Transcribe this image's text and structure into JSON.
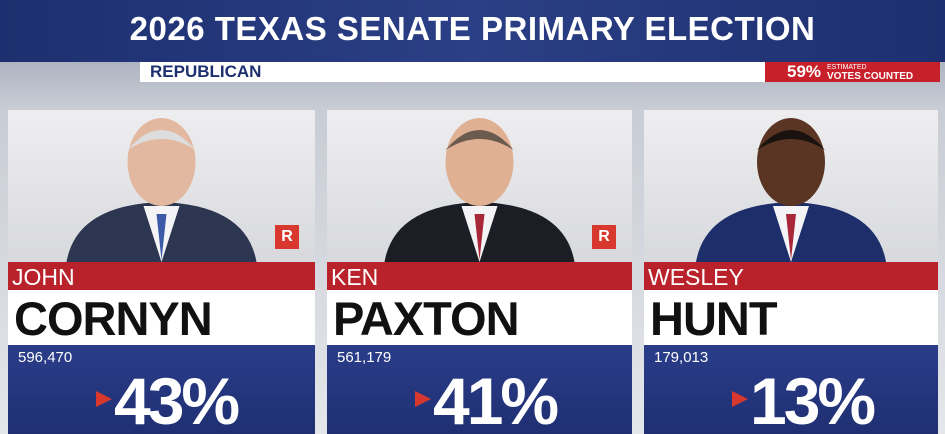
{
  "header": {
    "title": "2026 TEXAS SENATE PRIMARY ELECTION",
    "party": "REPUBLICAN",
    "reported": "59%",
    "reported_note_1": "ESTIMATED",
    "reported_note_2": "VOTES COUNTED"
  },
  "candidates": [
    {
      "first": "JOHN",
      "last": "CORNYN",
      "votes": "596,470",
      "percent": "43%",
      "badge": "R"
    },
    {
      "first": "KEN",
      "last": "PAXTON",
      "votes": "561,179",
      "percent": "41%",
      "badge": "R"
    },
    {
      "first": "WESLEY",
      "last": "HUNT",
      "votes": "179,013",
      "percent": "13%"
    }
  ]
}
